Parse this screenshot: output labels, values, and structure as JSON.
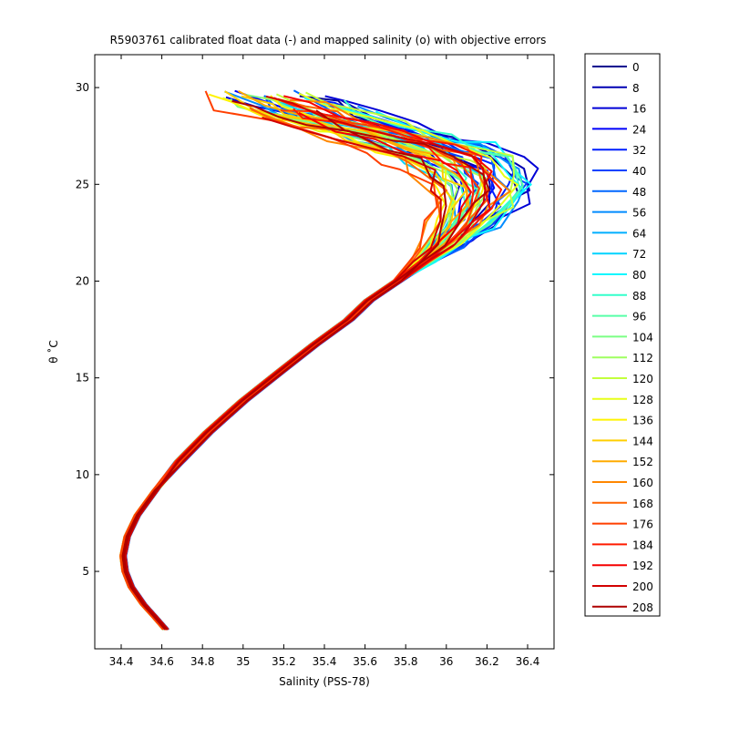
{
  "chart_data": {
    "type": "line",
    "title": "R5903761 calibrated float data (-) and mapped salinity (o) with objective errors",
    "xlabel": "Salinity (PSS-78)",
    "ylabel": "θ ˚C",
    "xlim": [
      34.27,
      36.53
    ],
    "ylim": [
      1.0,
      31.7
    ],
    "xticks": [
      {
        "value": 34.4,
        "label": "34.4"
      },
      {
        "value": 34.6,
        "label": "34.6"
      },
      {
        "value": 34.8,
        "label": "34.8"
      },
      {
        "value": 35.0,
        "label": "35"
      },
      {
        "value": 35.2,
        "label": "35.2"
      },
      {
        "value": 35.4,
        "label": "35.4"
      },
      {
        "value": 35.6,
        "label": "35.6"
      },
      {
        "value": 35.8,
        "label": "35.8"
      },
      {
        "value": 36.0,
        "label": "36"
      },
      {
        "value": 36.2,
        "label": "36.2"
      },
      {
        "value": 36.4,
        "label": "36.4"
      }
    ],
    "yticks": [
      {
        "value": 5,
        "label": "5"
      },
      {
        "value": 10,
        "label": "10"
      },
      {
        "value": 15,
        "label": "15"
      },
      {
        "value": 20,
        "label": "20"
      },
      {
        "value": 25,
        "label": "25"
      },
      {
        "value": 30,
        "label": "30"
      }
    ],
    "grid": false,
    "legend_position": "right-outside",
    "legend": [
      "0",
      "8",
      "16",
      "24",
      "32",
      "40",
      "48",
      "56",
      "64",
      "72",
      "80",
      "88",
      "96",
      "104",
      "112",
      "120",
      "128",
      "136",
      "144",
      "152",
      "160",
      "168",
      "176",
      "184",
      "192",
      "200",
      "208"
    ],
    "colors": [
      "#00008f",
      "#0000b3",
      "#0000d6",
      "#0000fa",
      "#001fff",
      "#0043ff",
      "#0067ff",
      "#008bff",
      "#00afff",
      "#00d3ff",
      "#0ff7ff",
      "#33ffcc",
      "#57ffa8",
      "#7bff84",
      "#9fff60",
      "#c3ff3c",
      "#e7ff18",
      "#fff300",
      "#ffcf00",
      "#ffab00",
      "#ff8700",
      "#ff6300",
      "#ff3f00",
      "#ff1b00",
      "#f60000",
      "#d20000",
      "#ae0000"
    ],
    "typical_profile": {
      "salinity": [
        34.62,
        34.57,
        34.51,
        34.45,
        34.42,
        34.41,
        34.43,
        34.48,
        34.57,
        34.69,
        34.83,
        35.0,
        35.18,
        35.35,
        35.52,
        35.62,
        35.76,
        35.91,
        36.05,
        36.16,
        36.24,
        36.27,
        36.25,
        36.18,
        36.05,
        35.87,
        35.67,
        35.5,
        35.35,
        35.22
      ],
      "theta": [
        2.0,
        2.6,
        3.3,
        4.2,
        5.0,
        5.8,
        6.8,
        7.9,
        9.2,
        10.7,
        12.2,
        13.8,
        15.3,
        16.7,
        18.0,
        19.0,
        20.0,
        21.0,
        22.0,
        23.0,
        24.0,
        24.8,
        25.6,
        26.3,
        26.9,
        27.5,
        28.0,
        28.6,
        29.1,
        29.6
      ]
    },
    "profile_step": 4
  }
}
